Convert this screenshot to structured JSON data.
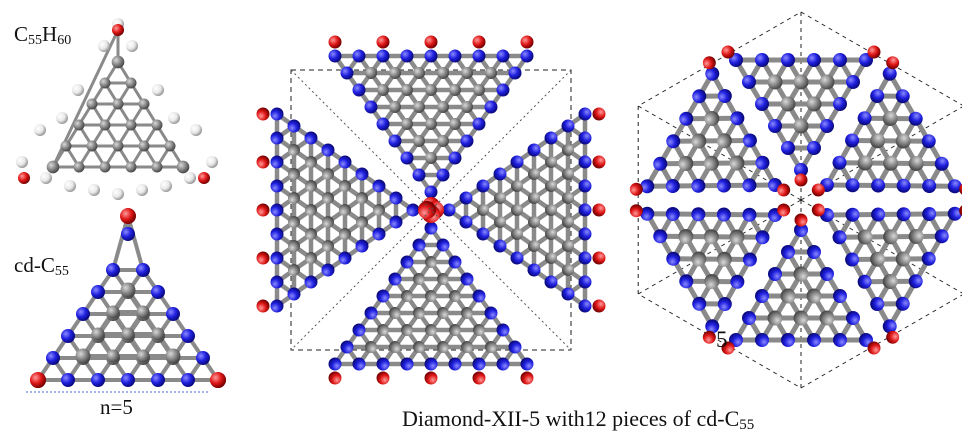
{
  "labels": {
    "top_left": {
      "c_count": "55",
      "h_count": "60"
    },
    "middle_left": {
      "c_count": "55"
    },
    "bottom_left": {
      "n_label": "n=5"
    },
    "right_panel": {
      "edge_number": "5"
    },
    "caption": {
      "main": "Diamond-XII-5 with12 pieces of cd-C",
      "subscript": "55"
    }
  },
  "colors": {
    "carbon": "#7f7f7f",
    "bond": "#8a8a8a",
    "edge_atom_blue": "#1f1fd6",
    "terminal_atom_red": "#d61818",
    "hydrogen": "#f2f2f2",
    "dashed_frame": "#222222"
  }
}
